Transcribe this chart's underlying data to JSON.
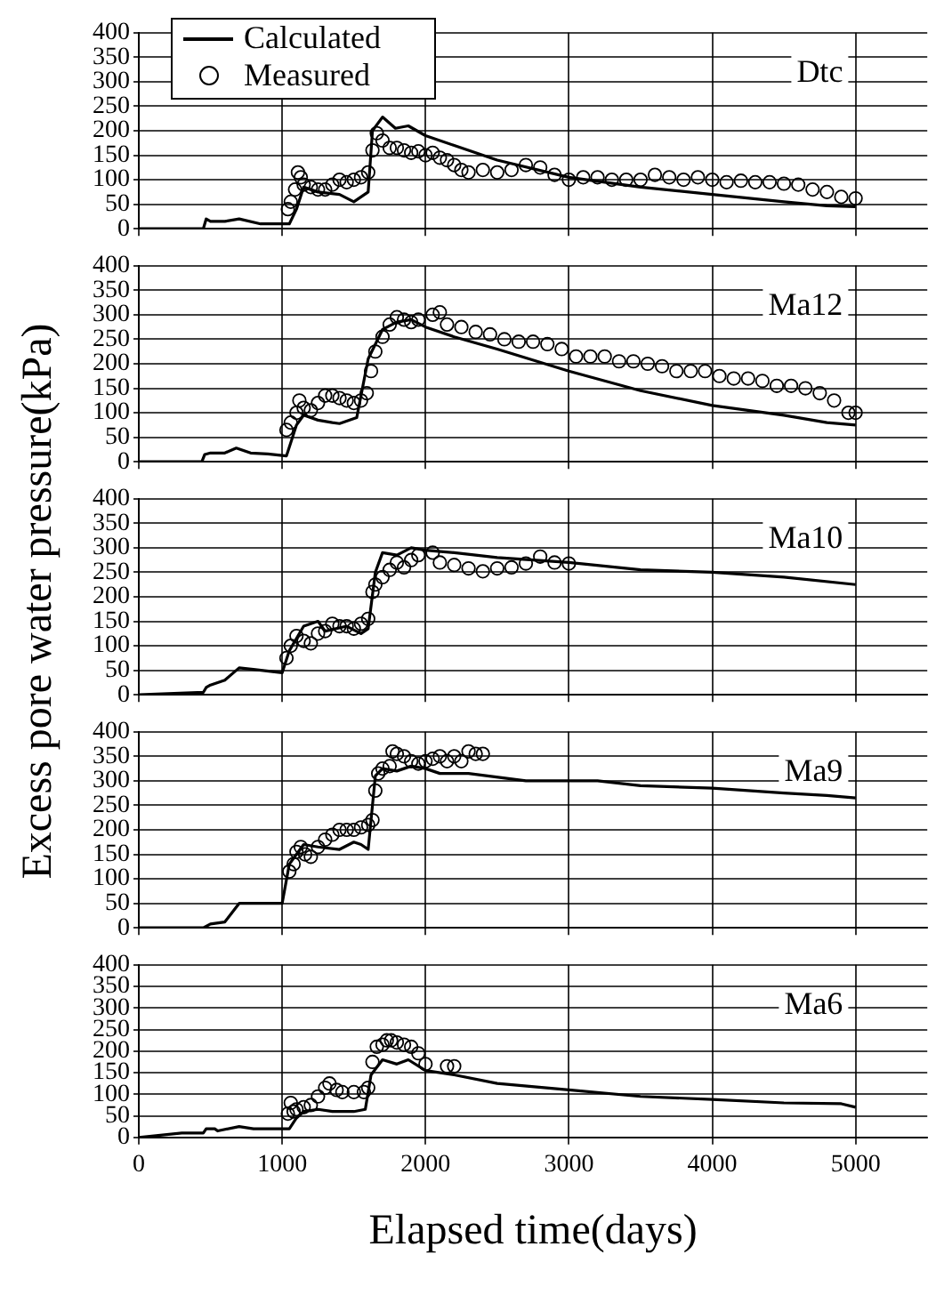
{
  "chart_data": [
    {
      "type": "line",
      "annotations": [
        "Dtc"
      ],
      "xlim": [
        0,
        5500
      ],
      "xticks": [
        0,
        1000,
        2000,
        3000,
        4000,
        5000
      ],
      "ylim": [
        0,
        400
      ],
      "yticks": [
        0,
        50,
        100,
        150,
        200,
        250,
        300,
        350,
        400
      ],
      "grid": true,
      "tick_labels": "y",
      "legend": "top left",
      "series": [
        {
          "name": "Calculated",
          "type": "line",
          "color": "#000000",
          "marker": "none",
          "x": [
            0,
            450,
            470,
            500,
            600,
            700,
            850,
            1050,
            1100,
            1150,
            1250,
            1400,
            1500,
            1600,
            1630,
            1700,
            1790,
            1880,
            2000,
            2200,
            2500,
            3000,
            3500,
            4000,
            4500,
            4800,
            5000
          ],
          "values": [
            0,
            0,
            20,
            15,
            15,
            20,
            10,
            10,
            40,
            85,
            75,
            70,
            55,
            75,
            200,
            228,
            205,
            210,
            190,
            170,
            140,
            105,
            85,
            70,
            55,
            47,
            45
          ]
        },
        {
          "name": "Measured",
          "type": "scatter",
          "color": "#000000",
          "marker": "circle",
          "x": [
            1040,
            1060,
            1090,
            1110,
            1130,
            1150,
            1200,
            1250,
            1300,
            1350,
            1400,
            1450,
            1500,
            1550,
            1600,
            1630,
            1660,
            1700,
            1750,
            1800,
            1850,
            1900,
            1950,
            2000,
            2050,
            2100,
            2150,
            2200,
            2250,
            2300,
            2400,
            2500,
            2600,
            2700,
            2800,
            2900,
            3000,
            3100,
            3200,
            3300,
            3400,
            3500,
            3600,
            3700,
            3800,
            3900,
            4000,
            4100,
            4200,
            4300,
            4400,
            4500,
            4600,
            4700,
            4800,
            4900,
            5000
          ],
          "values": [
            40,
            55,
            80,
            115,
            105,
            90,
            85,
            80,
            80,
            90,
            100,
            95,
            100,
            105,
            115,
            160,
            195,
            180,
            165,
            165,
            160,
            155,
            158,
            150,
            155,
            145,
            140,
            130,
            120,
            115,
            120,
            115,
            120,
            130,
            125,
            110,
            100,
            105,
            105,
            100,
            100,
            100,
            110,
            105,
            100,
            105,
            100,
            95,
            98,
            95,
            95,
            92,
            90,
            80,
            75,
            65,
            62
          ]
        }
      ]
    },
    {
      "type": "line",
      "annotations": [
        "Ma12"
      ],
      "xlim": [
        0,
        5500
      ],
      "xticks": [
        0,
        1000,
        2000,
        3000,
        4000,
        5000
      ],
      "ylim": [
        0,
        400
      ],
      "yticks": [
        0,
        50,
        100,
        150,
        200,
        250,
        300,
        350,
        400
      ],
      "grid": true,
      "tick_labels": "y",
      "series": [
        {
          "type": "line",
          "color": "#000000",
          "marker": "none",
          "x": [
            0,
            440,
            460,
            500,
            600,
            680,
            780,
            900,
            1030,
            1100,
            1150,
            1250,
            1350,
            1400,
            1520,
            1600,
            1700,
            1800,
            1900,
            2000,
            2200,
            2500,
            3000,
            3500,
            4000,
            4500,
            4800,
            5000
          ],
          "values": [
            0,
            0,
            15,
            18,
            18,
            28,
            18,
            16,
            12,
            75,
            95,
            85,
            80,
            78,
            90,
            210,
            270,
            285,
            290,
            275,
            255,
            230,
            185,
            145,
            115,
            95,
            80,
            75
          ]
        },
        {
          "type": "scatter",
          "color": "#000000",
          "marker": "circle",
          "x": [
            1030,
            1060,
            1100,
            1120,
            1150,
            1200,
            1250,
            1300,
            1350,
            1400,
            1450,
            1500,
            1550,
            1590,
            1620,
            1650,
            1700,
            1750,
            1800,
            1850,
            1900,
            1950,
            2050,
            2100,
            2150,
            2250,
            2350,
            2450,
            2550,
            2650,
            2750,
            2850,
            2950,
            3050,
            3150,
            3250,
            3350,
            3450,
            3550,
            3650,
            3750,
            3850,
            3950,
            4050,
            4150,
            4250,
            4350,
            4450,
            4550,
            4650,
            4750,
            4850,
            4950,
            5000
          ],
          "values": [
            65,
            80,
            100,
            125,
            110,
            105,
            120,
            135,
            135,
            130,
            125,
            120,
            125,
            140,
            185,
            225,
            255,
            280,
            295,
            290,
            285,
            290,
            300,
            305,
            280,
            275,
            265,
            260,
            250,
            245,
            245,
            240,
            230,
            215,
            215,
            215,
            205,
            205,
            200,
            195,
            185,
            185,
            185,
            175,
            170,
            170,
            165,
            155,
            155,
            150,
            140,
            125,
            100,
            100
          ]
        }
      ]
    },
    {
      "type": "line",
      "annotations": [
        "Ma10"
      ],
      "ylabel": "Excess pore water pressure(kPa)",
      "xlim": [
        0,
        5500
      ],
      "xticks": [
        0,
        1000,
        2000,
        3000,
        4000,
        5000
      ],
      "ylim": [
        0,
        400
      ],
      "yticks": [
        0,
        50,
        100,
        150,
        200,
        250,
        300,
        350,
        400
      ],
      "grid": true,
      "tick_labels": "y",
      "series": [
        {
          "type": "line",
          "color": "#000000",
          "marker": "none",
          "x": [
            0,
            450,
            470,
            500,
            600,
            700,
            800,
            1000,
            1050,
            1150,
            1250,
            1300,
            1450,
            1550,
            1600,
            1650,
            1700,
            1800,
            1900,
            2000,
            2200,
            2500,
            3000,
            3500,
            4000,
            4500,
            5000
          ],
          "values": [
            0,
            5,
            15,
            20,
            30,
            55,
            52,
            45,
            90,
            140,
            150,
            130,
            140,
            125,
            135,
            250,
            290,
            285,
            300,
            295,
            290,
            280,
            270,
            255,
            250,
            240,
            225
          ]
        },
        {
          "type": "scatter",
          "color": "#000000",
          "marker": "circle",
          "x": [
            1030,
            1060,
            1100,
            1150,
            1200,
            1250,
            1300,
            1350,
            1400,
            1450,
            1500,
            1550,
            1600,
            1630,
            1650,
            1700,
            1750,
            1800,
            1850,
            1900,
            1950,
            2050,
            2100,
            2200,
            2300,
            2400,
            2500,
            2600,
            2700,
            2800,
            2900,
            3000
          ],
          "values": [
            75,
            100,
            120,
            110,
            105,
            125,
            130,
            145,
            140,
            140,
            135,
            145,
            155,
            210,
            225,
            240,
            255,
            270,
            260,
            275,
            285,
            290,
            270,
            265,
            258,
            252,
            258,
            260,
            268,
            282,
            270,
            268
          ]
        }
      ]
    },
    {
      "type": "line",
      "annotations": [
        "Ma9"
      ],
      "xlim": [
        0,
        5500
      ],
      "xticks": [
        0,
        1000,
        2000,
        3000,
        4000,
        5000
      ],
      "ylim": [
        0,
        400
      ],
      "yticks": [
        0,
        50,
        100,
        150,
        200,
        250,
        300,
        350,
        400
      ],
      "grid": true,
      "tick_labels": "y",
      "series": [
        {
          "type": "line",
          "color": "#000000",
          "marker": "none",
          "x": [
            0,
            450,
            500,
            600,
            700,
            1000,
            1050,
            1100,
            1150,
            1250,
            1400,
            1500,
            1550,
            1600,
            1650,
            1700,
            1800,
            1900,
            2000,
            2100,
            2300,
            2700,
            3200,
            3500,
            4000,
            4500,
            4800,
            5000
          ],
          "values": [
            0,
            0,
            8,
            12,
            50,
            50,
            130,
            150,
            170,
            165,
            160,
            175,
            170,
            160,
            310,
            325,
            320,
            330,
            325,
            315,
            315,
            300,
            300,
            290,
            285,
            275,
            270,
            265
          ]
        },
        {
          "type": "scatter",
          "color": "#000000",
          "marker": "circle",
          "x": [
            1050,
            1080,
            1100,
            1130,
            1160,
            1200,
            1250,
            1300,
            1350,
            1400,
            1450,
            1500,
            1550,
            1600,
            1630,
            1650,
            1670,
            1700,
            1750,
            1770,
            1800,
            1850,
            1900,
            1950,
            2000,
            2050,
            2100,
            2150,
            2200,
            2250,
            2300,
            2350,
            2400
          ],
          "values": [
            115,
            130,
            155,
            165,
            150,
            145,
            165,
            180,
            190,
            200,
            200,
            200,
            205,
            210,
            220,
            280,
            315,
            325,
            330,
            360,
            355,
            350,
            340,
            335,
            340,
            345,
            350,
            340,
            350,
            340,
            360,
            355,
            355
          ]
        }
      ]
    },
    {
      "type": "line",
      "annotations": [
        "Ma6"
      ],
      "xlabel": "Elapsed time(days)",
      "xlim": [
        0,
        5500
      ],
      "xticks": [
        0,
        1000,
        2000,
        3000,
        4000,
        5000
      ],
      "ylim": [
        0,
        400
      ],
      "yticks": [
        0,
        50,
        100,
        150,
        200,
        250,
        300,
        350,
        400
      ],
      "grid": true,
      "series": [
        {
          "type": "line",
          "color": "#000000",
          "marker": "none",
          "x": [
            0,
            300,
            450,
            470,
            530,
            550,
            700,
            800,
            1050,
            1100,
            1150,
            1250,
            1350,
            1500,
            1580,
            1620,
            1700,
            1800,
            1880,
            2000,
            2200,
            2500,
            3000,
            3500,
            4000,
            4500,
            4900,
            5000
          ],
          "values": [
            0,
            10,
            10,
            20,
            20,
            15,
            25,
            20,
            20,
            45,
            60,
            65,
            60,
            60,
            65,
            145,
            180,
            170,
            180,
            155,
            145,
            125,
            110,
            95,
            88,
            80,
            78,
            70
          ]
        },
        {
          "type": "scatter",
          "color": "#000000",
          "marker": "circle",
          "x": [
            1040,
            1060,
            1080,
            1100,
            1150,
            1200,
            1250,
            1300,
            1330,
            1380,
            1420,
            1500,
            1570,
            1600,
            1630,
            1660,
            1700,
            1730,
            1760,
            1800,
            1850,
            1900,
            1950,
            2000,
            2150,
            2200
          ],
          "values": [
            55,
            80,
            60,
            65,
            70,
            75,
            95,
            115,
            125,
            110,
            105,
            105,
            105,
            115,
            175,
            210,
            215,
            225,
            225,
            220,
            215,
            210,
            195,
            170,
            165,
            165
          ]
        }
      ]
    }
  ]
}
